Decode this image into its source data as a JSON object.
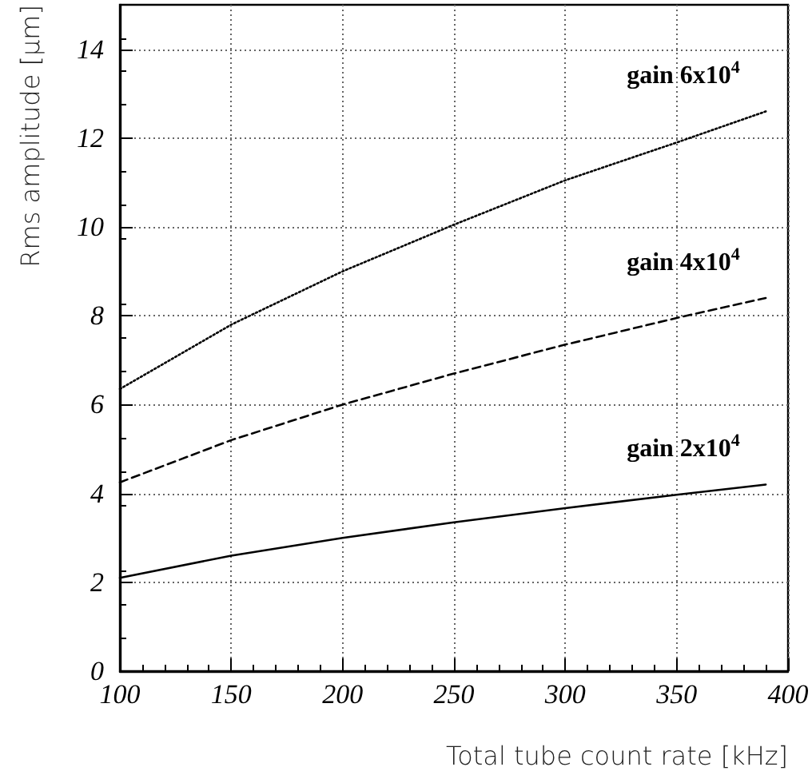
{
  "chart_data": {
    "type": "line",
    "xlabel": "Total tube count rate [kHz]",
    "ylabel": "Rms amplitude [μm]",
    "xlim": [
      100,
      400
    ],
    "xticks": [
      100,
      150,
      200,
      250,
      300,
      350,
      400
    ],
    "ylim": [
      0,
      15
    ],
    "yticks": [
      0,
      2,
      4,
      6,
      8,
      10,
      12,
      14
    ],
    "grid": true,
    "legend": false,
    "marker": "none",
    "x": [
      100,
      150,
      200,
      250,
      300,
      350,
      390
    ],
    "series": [
      {
        "name": "gain 6x10$^{4}$",
        "color": "#000000",
        "line_style": "dotted",
        "values": [
          6.35,
          7.8,
          9.0,
          10.05,
          11.05,
          11.9,
          12.6
        ]
      },
      {
        "name": "gain 4x10$^{4}$",
        "color": "#000000",
        "line_style": "dashed",
        "values": [
          4.25,
          5.2,
          6.0,
          6.7,
          7.35,
          7.95,
          8.4
        ]
      },
      {
        "name": "gain 2x10$^{4}$",
        "color": "#000000",
        "line_style": "solid",
        "values": [
          2.1,
          2.6,
          3.0,
          3.35,
          3.67,
          3.97,
          4.2
        ]
      }
    ]
  }
}
